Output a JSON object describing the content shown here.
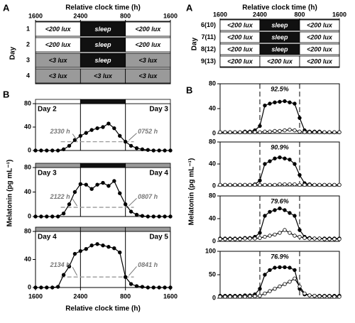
{
  "panel_labels": [
    "A",
    "B",
    "A",
    "B"
  ],
  "ylabels": [
    "Melatonin (pg mL⁻¹)",
    "Melatonin (pg mL⁻¹)"
  ],
  "schedules": [
    {
      "title": "Relative clock time (h)",
      "ylabel": "Day",
      "xlim": [
        16,
        40
      ],
      "xticks": [
        {
          "value": 16,
          "label": "1600"
        },
        {
          "value": 24,
          "label": "2400"
        },
        {
          "value": 32,
          "label": "800"
        },
        {
          "value": 40,
          "label": "1600"
        }
      ],
      "breaks": [
        16,
        24,
        32,
        40
      ],
      "rows": [
        {
          "label": "1",
          "cells": [
            "<200 lux",
            "sleep",
            "<200 lux"
          ],
          "colors": [
            "#ffffff",
            "#111111",
            "#ffffff"
          ]
        },
        {
          "label": "2",
          "cells": [
            "<200 lux",
            "sleep",
            "<200 lux"
          ],
          "colors": [
            "#ffffff",
            "#111111",
            "#ffffff"
          ]
        },
        {
          "label": "3",
          "cells": [
            "<3 lux",
            "sleep",
            "<3 lux"
          ],
          "colors": [
            "#9a9a9a",
            "#111111",
            "#9a9a9a"
          ]
        },
        {
          "label": "4",
          "cells": [
            "<3 lux",
            "<3 lux",
            "<3 lux"
          ],
          "colors": [
            "#9a9a9a",
            "#9a9a9a",
            "#9a9a9a"
          ]
        }
      ]
    },
    {
      "title": "Relative clock time (h)",
      "ylabel": "Day",
      "xlim": [
        16,
        40
      ],
      "xticks": [
        {
          "value": 16,
          "label": "1600"
        },
        {
          "value": 24,
          "label": "2400"
        },
        {
          "value": 32,
          "label": "800"
        },
        {
          "value": 40,
          "label": "1600"
        }
      ],
      "breaks": [
        16,
        24,
        32,
        40
      ],
      "rows": [
        {
          "label": "6(10)",
          "cells": [
            "<200 lux",
            "sleep",
            "<200 lux"
          ],
          "colors": [
            "#ffffff",
            "#111111",
            "#ffffff"
          ]
        },
        {
          "label": "7(11)",
          "cells": [
            "<200 lux",
            "sleep",
            "<200 lux"
          ],
          "colors": [
            "#ffffff",
            "#111111",
            "#ffffff"
          ]
        },
        {
          "label": "8(12)",
          "cells": [
            "<200 lux",
            "sleep",
            "<200 lux"
          ],
          "colors": [
            "#ffffff",
            "#111111",
            "#ffffff"
          ]
        },
        {
          "label": "9(13)",
          "cells": [
            "<200 lux",
            "<200 lux",
            "<200 lux"
          ],
          "colors": [
            "#ffffff",
            "#ffffff",
            "#ffffff"
          ]
        }
      ]
    }
  ],
  "chart_data": [
    {
      "type": "line",
      "xlim": [
        16,
        40
      ],
      "ylim": [
        0,
        80
      ],
      "yticks": [
        0,
        40,
        80
      ],
      "x": [
        16,
        17,
        18,
        19,
        20,
        21,
        22,
        23,
        24,
        25,
        26,
        27,
        28,
        29,
        30,
        31,
        32,
        33,
        34,
        35,
        36,
        37,
        38,
        39,
        40
      ],
      "series": [
        {
          "color": "#000000",
          "marker": "filled",
          "values": [
            0,
            0,
            0,
            0,
            0,
            2,
            8,
            18,
            25,
            30,
            35,
            38,
            40,
            46,
            38,
            25,
            15,
            8,
            4,
            2,
            1,
            0,
            0,
            0,
            0
          ]
        }
      ],
      "vlines": [
        24,
        32
      ],
      "vline_style": "solid",
      "band_breaks": [
        16,
        24,
        32,
        40
      ],
      "band_colors": [
        "#ffffff",
        "#111111",
        "#ffffff"
      ],
      "threshold": 15,
      "annotations": [
        "Day 2",
        "Day 3",
        "2330 h",
        "0752 h"
      ]
    },
    {
      "type": "line",
      "xlim": [
        16,
        40
      ],
      "ylim": [
        0,
        80
      ],
      "yticks": [
        0,
        40,
        80
      ],
      "x": [
        16,
        17,
        18,
        19,
        20,
        21,
        22,
        23,
        24,
        25,
        26,
        27,
        28,
        29,
        30,
        31,
        32,
        33,
        34,
        35,
        36,
        37,
        38,
        39,
        40
      ],
      "series": [
        {
          "color": "#000000",
          "marker": "filled",
          "values": [
            0,
            0,
            0,
            0,
            0,
            5,
            20,
            40,
            53,
            52,
            45,
            52,
            55,
            50,
            58,
            38,
            20,
            8,
            3,
            1,
            0,
            0,
            0,
            0,
            0
          ]
        }
      ],
      "vlines": [
        24,
        32
      ],
      "vline_style": "solid",
      "band_breaks": [
        16,
        24,
        32,
        40
      ],
      "band_colors": [
        "#9a9a9a",
        "#111111",
        "#9a9a9a"
      ],
      "threshold": 15,
      "annotations": [
        "Day 3",
        "Day 4",
        "2122 h",
        "0807 h"
      ]
    },
    {
      "type": "line",
      "xlim": [
        16,
        40
      ],
      "ylim": [
        0,
        80
      ],
      "yticks": [
        0,
        40,
        80
      ],
      "xticks": [
        {
          "value": 16,
          "label": "1600"
        },
        {
          "value": 24,
          "label": "2400"
        },
        {
          "value": 32,
          "label": "800"
        },
        {
          "value": 40,
          "label": "1600"
        }
      ],
      "xlabel": "Relative clock time (h)",
      "x": [
        16,
        17,
        18,
        19,
        20,
        21,
        22,
        23,
        24,
        25,
        26,
        27,
        28,
        29,
        30,
        31,
        32,
        33,
        34,
        35,
        36,
        37,
        38,
        39,
        40
      ],
      "series": [
        {
          "color": "#000000",
          "marker": "filled",
          "values": [
            0,
            0,
            0,
            0,
            1,
            18,
            30,
            48,
            52,
            55,
            60,
            62,
            60,
            58,
            56,
            50,
            15,
            5,
            2,
            1,
            0,
            0,
            0,
            0,
            0
          ]
        }
      ],
      "vlines": [
        24,
        32
      ],
      "vline_style": "solid",
      "band_breaks": [
        16,
        24,
        32,
        40
      ],
      "band_colors": [
        "#9a9a9a",
        "#9a9a9a",
        "#9a9a9a"
      ],
      "threshold": 15,
      "annotations": [
        "Day 4",
        "Day 5",
        "2134 h",
        "0841 h"
      ]
    },
    {
      "type": "line",
      "xlim": [
        16,
        40
      ],
      "ylim": [
        0,
        80
      ],
      "yticks": [
        0,
        40,
        80
      ],
      "x": [
        16,
        17,
        18,
        19,
        20,
        21,
        22,
        23,
        24,
        25,
        26,
        27,
        28,
        29,
        30,
        31,
        32,
        33,
        34,
        35,
        36,
        37,
        38,
        39,
        40
      ],
      "series": [
        {
          "color": "#000000",
          "marker": "filled",
          "values": [
            2,
            2,
            2,
            2,
            2,
            3,
            3,
            5,
            12,
            45,
            48,
            50,
            51,
            52,
            50,
            48,
            25,
            5,
            3,
            3,
            3,
            2,
            2,
            2,
            2
          ]
        },
        {
          "color": "#000000",
          "marker": "open",
          "values": [
            2,
            2,
            2,
            2,
            2,
            2,
            2,
            2,
            2,
            3,
            3,
            4,
            4,
            5,
            6,
            5,
            3,
            2,
            2,
            2,
            2,
            2,
            2,
            2,
            2
          ]
        }
      ],
      "vlines": [
        24,
        32
      ],
      "vline_style": "dashed",
      "annotations": [
        "92.5%"
      ]
    },
    {
      "type": "line",
      "xlim": [
        16,
        40
      ],
      "ylim": [
        0,
        80
      ],
      "yticks": [
        0,
        40,
        80
      ],
      "x": [
        16,
        17,
        18,
        19,
        20,
        21,
        22,
        23,
        24,
        25,
        26,
        27,
        28,
        29,
        30,
        31,
        32,
        33,
        34,
        35,
        36,
        37,
        38,
        39,
        40
      ],
      "series": [
        {
          "color": "#000000",
          "marker": "filled",
          "values": [
            2,
            2,
            2,
            2,
            2,
            2,
            2,
            3,
            10,
            40,
            45,
            50,
            52,
            50,
            48,
            40,
            20,
            5,
            3,
            2,
            2,
            2,
            2,
            2,
            2
          ]
        },
        {
          "color": "#000000",
          "marker": "open",
          "values": [
            2,
            2,
            2,
            2,
            2,
            2,
            2,
            2,
            2,
            2,
            2,
            2,
            3,
            3,
            3,
            3,
            2,
            2,
            2,
            2,
            2,
            2,
            2,
            2,
            2
          ]
        }
      ],
      "vlines": [
        24,
        32
      ],
      "vline_style": "dashed",
      "annotations": [
        "90.9%"
      ]
    },
    {
      "type": "line",
      "xlim": [
        16,
        40
      ],
      "ylim": [
        0,
        80
      ],
      "yticks": [
        0,
        40,
        80
      ],
      "x": [
        16,
        17,
        18,
        19,
        20,
        21,
        22,
        23,
        24,
        25,
        26,
        27,
        28,
        29,
        30,
        31,
        32,
        33,
        34,
        35,
        36,
        37,
        38,
        39,
        40
      ],
      "series": [
        {
          "color": "#000000",
          "marker": "filled",
          "values": [
            5,
            5,
            5,
            5,
            5,
            6,
            6,
            8,
            15,
            45,
            52,
            55,
            58,
            55,
            50,
            45,
            20,
            8,
            6,
            5,
            5,
            5,
            5,
            5,
            5
          ]
        },
        {
          "color": "#000000",
          "marker": "open",
          "values": [
            4,
            4,
            4,
            4,
            4,
            5,
            5,
            5,
            6,
            8,
            10,
            12,
            15,
            20,
            15,
            10,
            8,
            6,
            5,
            5,
            5,
            4,
            4,
            4,
            4
          ]
        }
      ],
      "vlines": [
        24,
        32
      ],
      "vline_style": "dashed",
      "annotations": [
        "79.6%"
      ]
    },
    {
      "type": "line",
      "xlim": [
        16,
        40
      ],
      "ylim": [
        0,
        100
      ],
      "yticks": [
        0,
        50,
        100
      ],
      "x": [
        16,
        17,
        18,
        19,
        20,
        21,
        22,
        23,
        24,
        25,
        26,
        27,
        28,
        29,
        30,
        31,
        32,
        33,
        34,
        35,
        36,
        37,
        38,
        39,
        40
      ],
      "series": [
        {
          "color": "#000000",
          "marker": "filled",
          "values": [
            5,
            5,
            5,
            5,
            5,
            6,
            6,
            8,
            20,
            50,
            60,
            65,
            66,
            66,
            65,
            60,
            20,
            8,
            6,
            5,
            5,
            5,
            5,
            5,
            5
          ]
        },
        {
          "color": "#000000",
          "marker": "open",
          "values": [
            3,
            3,
            3,
            3,
            3,
            3,
            4,
            4,
            5,
            10,
            15,
            20,
            25,
            30,
            35,
            42,
            25,
            10,
            6,
            5,
            4,
            4,
            4,
            3,
            3
          ]
        }
      ],
      "vlines": [
        24,
        32
      ],
      "vline_style": "dashed",
      "annotations": [
        "76.9%"
      ]
    }
  ]
}
